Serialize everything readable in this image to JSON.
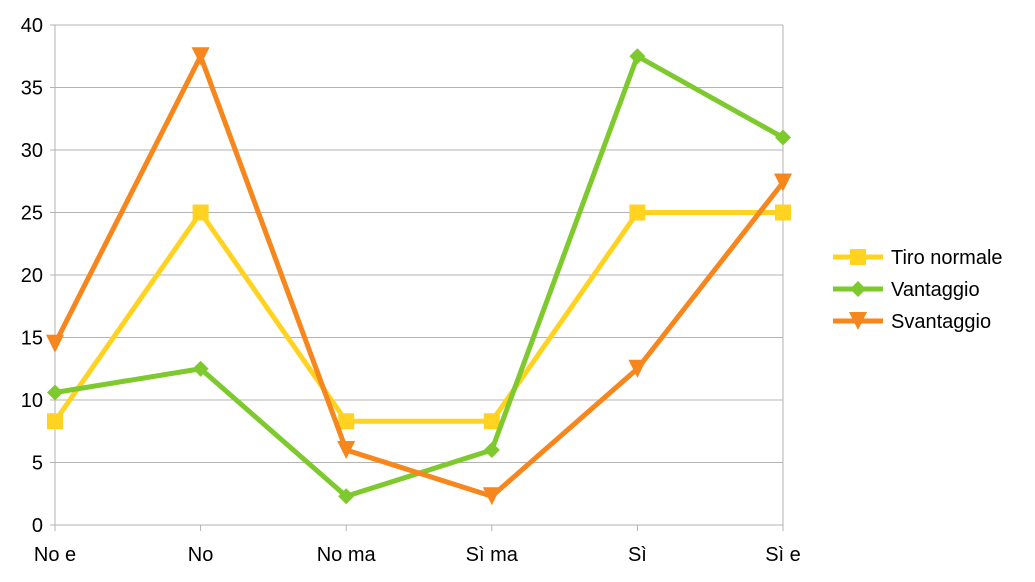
{
  "chart_data": {
    "type": "line",
    "title": "",
    "xlabel": "",
    "ylabel": "",
    "categories": [
      "No e",
      "No",
      "No ma",
      "Sì ma",
      "Sì",
      "Sì e"
    ],
    "ylim": [
      0,
      40
    ],
    "yticks": [
      0,
      5,
      10,
      15,
      20,
      25,
      30,
      35,
      40
    ],
    "grid": true,
    "legend_position": "right",
    "series": [
      {
        "name": "Tiro normale",
        "color": "#FFD320",
        "marker": "square",
        "values": [
          8.3,
          25,
          8.3,
          8.3,
          25,
          25
        ]
      },
      {
        "name": "Vantaggio",
        "color": "#7EC92D",
        "marker": "diamond",
        "values": [
          10.6,
          12.5,
          2.3,
          6.0,
          37.5,
          31.0
        ]
      },
      {
        "name": "Svantaggio",
        "color": "#F7861D",
        "marker": "triangle-down",
        "values": [
          14.5,
          37.5,
          6.0,
          2.3,
          12.5,
          27.4
        ]
      }
    ]
  }
}
